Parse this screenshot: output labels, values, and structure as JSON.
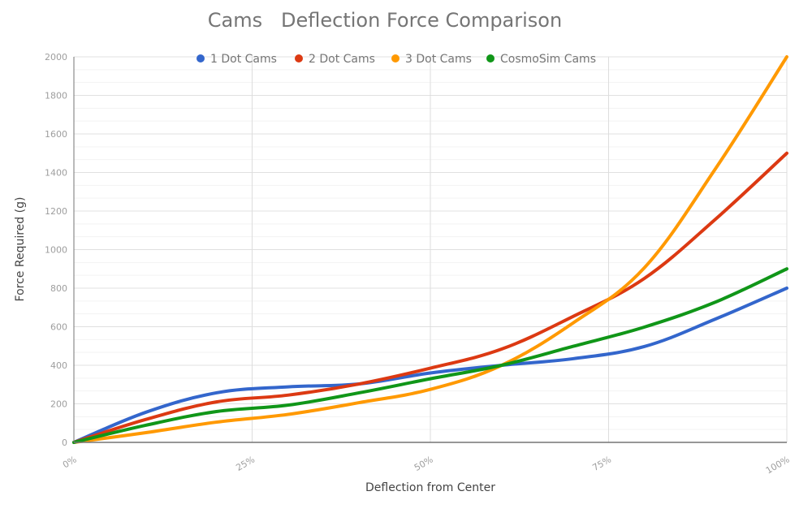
{
  "chart_data": {
    "type": "line",
    "title": "Cams   Deflection Force Comparison",
    "xlabel": "Deflection from Center",
    "ylabel": "Force Required (g)",
    "x": [
      0,
      10,
      20,
      30,
      40,
      50,
      60,
      70,
      80,
      90,
      100
    ],
    "x_unit": "%",
    "xticks": [
      "0%",
      "25%",
      "50%",
      "75%",
      "100%"
    ],
    "xtick_values": [
      0,
      25,
      50,
      75,
      100
    ],
    "xlim": [
      0,
      100
    ],
    "yticks": [
      "0",
      "200",
      "400",
      "600",
      "800",
      "1000",
      "1200",
      "1400",
      "1600",
      "1800",
      "2000"
    ],
    "ytick_values": [
      0,
      200,
      400,
      600,
      800,
      1000,
      1200,
      1400,
      1600,
      1800,
      2000
    ],
    "ylim": [
      0,
      2000
    ],
    "grid": true,
    "minor_gridlines_per_major": 2,
    "legend_position": "top",
    "smooth": true,
    "series": [
      {
        "name": "1 Dot Cams",
        "color": "#3366cc",
        "values": [
          0,
          155,
          257,
          288,
          303,
          360,
          400,
          434,
          497,
          640,
          800
        ]
      },
      {
        "name": "2 Dot Cams",
        "color": "#dc3912",
        "values": [
          0,
          118,
          210,
          245,
          303,
          385,
          484,
          653,
          850,
          1158,
          1500
        ]
      },
      {
        "name": "3 Dot Cams",
        "color": "#ff9900",
        "values": [
          0,
          50,
          105,
          145,
          206,
          275,
          400,
          619,
          905,
          1420,
          2000
        ]
      },
      {
        "name": "CosmoSim Cams",
        "color": "#109618",
        "values": [
          0,
          88,
          160,
          193,
          257,
          330,
          400,
          498,
          598,
          728,
          900
        ]
      }
    ]
  }
}
